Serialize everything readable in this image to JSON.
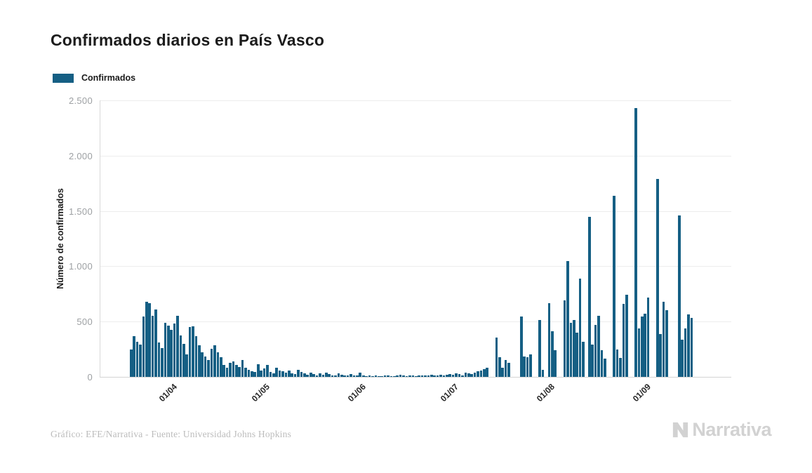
{
  "header": {
    "title": "Confirmados diarios en País Vasco"
  },
  "legend": {
    "label": "Confirmados",
    "swatch_color": "#155f84"
  },
  "footer": {
    "credit": "Gráfico: EFE/Narrativa - Fuente: Universidad Johns Hopkins",
    "logo_text": "Narrativa"
  },
  "chart_data": {
    "type": "bar",
    "title": "Confirmados diarios en País Vasco",
    "xlabel": "",
    "ylabel": "Número de confirmados",
    "ylim": [
      0,
      2500
    ],
    "grid": true,
    "legend_position": "top-left",
    "bar_color": "#155f84",
    "y_ticks": [
      0,
      500,
      1000,
      1500,
      2000,
      2500
    ],
    "y_tick_labels": [
      "0",
      "500",
      "1.000",
      "1.500",
      "2.000",
      "2.500"
    ],
    "x_tick_labels": [
      "01/04",
      "01/05",
      "01/06",
      "01/07",
      "01/08",
      "01/09"
    ],
    "x_tick_indices": [
      13,
      43,
      74,
      104,
      135,
      166
    ],
    "series": [
      {
        "name": "Confirmados",
        "values": [
          250,
          365,
          315,
          295,
          545,
          680,
          665,
          550,
          610,
          310,
          260,
          490,
          465,
          425,
          480,
          555,
          375,
          300,
          205,
          450,
          455,
          370,
          285,
          220,
          185,
          155,
          255,
          285,
          225,
          175,
          105,
          80,
          130,
          140,
          110,
          90,
          150,
          85,
          65,
          50,
          45,
          115,
          60,
          75,
          105,
          45,
          30,
          85,
          55,
          50,
          40,
          60,
          30,
          25,
          65,
          45,
          30,
          20,
          35,
          25,
          15,
          30,
          20,
          35,
          25,
          15,
          10,
          30,
          20,
          15,
          10,
          25,
          15,
          10,
          35,
          15,
          8,
          10,
          5,
          12,
          8,
          5,
          10,
          15,
          8,
          5,
          12,
          20,
          10,
          8,
          15,
          10,
          8,
          12,
          10,
          15,
          12,
          18,
          15,
          12,
          20,
          15,
          18,
          25,
          20,
          30,
          25,
          15,
          35,
          30,
          25,
          40,
          50,
          60,
          70,
          85,
          0,
          0,
          355,
          175,
          80,
          150,
          125,
          0,
          0,
          0,
          545,
          185,
          175,
          205,
          0,
          0,
          515,
          65,
          0,
          665,
          410,
          240,
          0,
          0,
          690,
          1050,
          490,
          515,
          400,
          890,
          320,
          0,
          1445,
          295,
          470,
          555,
          240,
          165,
          0,
          0,
          1640,
          245,
          170,
          660,
          740,
          0,
          0,
          2430,
          435,
          545,
          570,
          720,
          0,
          0,
          1790,
          385,
          680,
          600,
          0,
          0,
          0,
          1460,
          335,
          440,
          565,
          535
        ]
      }
    ]
  }
}
